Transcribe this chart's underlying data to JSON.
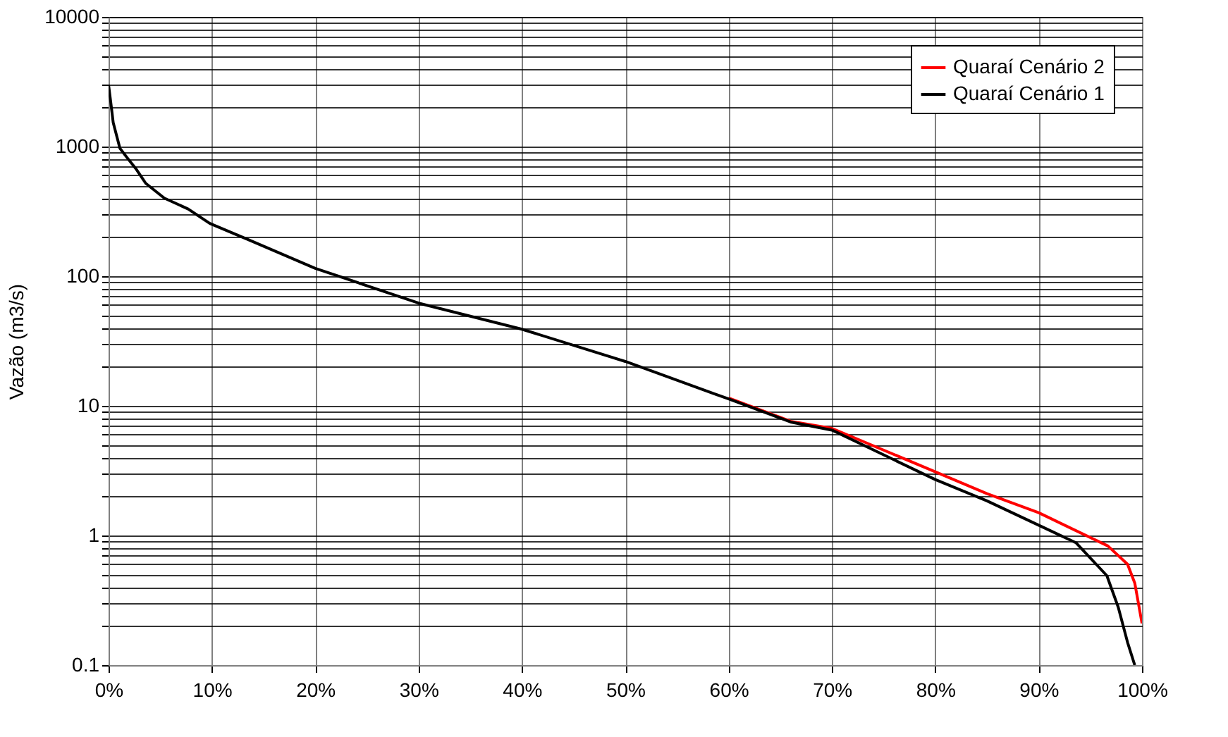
{
  "chart_data": {
    "type": "line",
    "ylabel": "Vazão (m3/s)",
    "log": "y",
    "grid": true,
    "legend": "top right",
    "line_style": "solid",
    "marker": "none",
    "xlim": [
      0,
      100
    ],
    "ylim": [
      0.1,
      10000
    ],
    "xticks": [
      {
        "value": 0,
        "label": "0%"
      },
      {
        "value": 10,
        "label": "10%"
      },
      {
        "value": 20,
        "label": "20%"
      },
      {
        "value": 30,
        "label": "30%"
      },
      {
        "value": 40,
        "label": "40%"
      },
      {
        "value": 50,
        "label": "50%"
      },
      {
        "value": 60,
        "label": "60%"
      },
      {
        "value": 70,
        "label": "70%"
      },
      {
        "value": 80,
        "label": "80%"
      },
      {
        "value": 90,
        "label": "90%"
      },
      {
        "value": 100,
        "label": "100%"
      }
    ],
    "yticks": [
      0.1,
      {
        "value": 0.2,
        "label": null
      },
      {
        "value": 0.3,
        "label": null
      },
      {
        "value": 0.4,
        "label": null
      },
      {
        "value": 0.5,
        "label": null
      },
      {
        "value": 0.6,
        "label": null
      },
      {
        "value": 0.7,
        "label": null
      },
      {
        "value": 0.8,
        "label": null
      },
      {
        "value": 0.9,
        "label": null
      },
      1,
      {
        "value": 2,
        "label": null
      },
      {
        "value": 3,
        "label": null
      },
      {
        "value": 4,
        "label": null
      },
      {
        "value": 5,
        "label": null
      },
      {
        "value": 6,
        "label": null
      },
      {
        "value": 7,
        "label": null
      },
      {
        "value": 8,
        "label": null
      },
      {
        "value": 9,
        "label": null
      },
      10,
      {
        "value": 20,
        "label": null
      },
      {
        "value": 30,
        "label": null
      },
      {
        "value": 40,
        "label": null
      },
      {
        "value": 50,
        "label": null
      },
      {
        "value": 60,
        "label": null
      },
      {
        "value": 70,
        "label": null
      },
      {
        "value": 80,
        "label": null
      },
      {
        "value": 90,
        "label": null
      },
      100,
      {
        "value": 200,
        "label": null
      },
      {
        "value": 300,
        "label": null
      },
      {
        "value": 400,
        "label": null
      },
      {
        "value": 500,
        "label": null
      },
      {
        "value": 600,
        "label": null
      },
      {
        "value": 700,
        "label": null
      },
      {
        "value": 800,
        "label": null
      },
      {
        "value": 900,
        "label": null
      },
      1000,
      {
        "value": 2000,
        "label": null
      },
      {
        "value": 3000,
        "label": null
      },
      {
        "value": 4000,
        "label": null
      },
      {
        "value": 5000,
        "label": null
      },
      {
        "value": 6000,
        "label": null
      },
      {
        "value": 7000,
        "label": null
      },
      {
        "value": 8000,
        "label": null
      },
      {
        "value": 9000,
        "label": null
      },
      10000
    ],
    "series": [
      {
        "name": "Quaraí Cenário 2",
        "color": "#ff0000",
        "x": [
          60,
          66,
          70,
          80,
          85,
          90,
          96.7,
          98.6,
          99.3,
          100
        ],
        "values": [
          11.5,
          7.6,
          6.7,
          3.1,
          2.1,
          1.5,
          0.83,
          0.6,
          0.43,
          0.21
        ]
      },
      {
        "name": "Quaraí Cenário 1",
        "color": "#000000",
        "x": [
          0,
          0.23,
          0.45,
          1.1,
          1.8,
          2.7,
          3.6,
          5.4,
          7.7,
          9.8,
          13.6,
          20,
          30,
          40,
          50,
          60,
          66,
          70,
          80,
          85,
          90,
          93.6,
          96.6,
          97.7,
          98.6,
          99.3
        ],
        "values": [
          3000,
          2140,
          1530,
          970,
          820,
          665,
          520,
          400,
          330,
          255,
          190,
          115,
          62,
          39,
          22,
          11.3,
          7.5,
          6.5,
          2.7,
          1.85,
          1.2,
          0.88,
          0.49,
          0.28,
          0.15,
          0.1
        ]
      }
    ]
  }
}
